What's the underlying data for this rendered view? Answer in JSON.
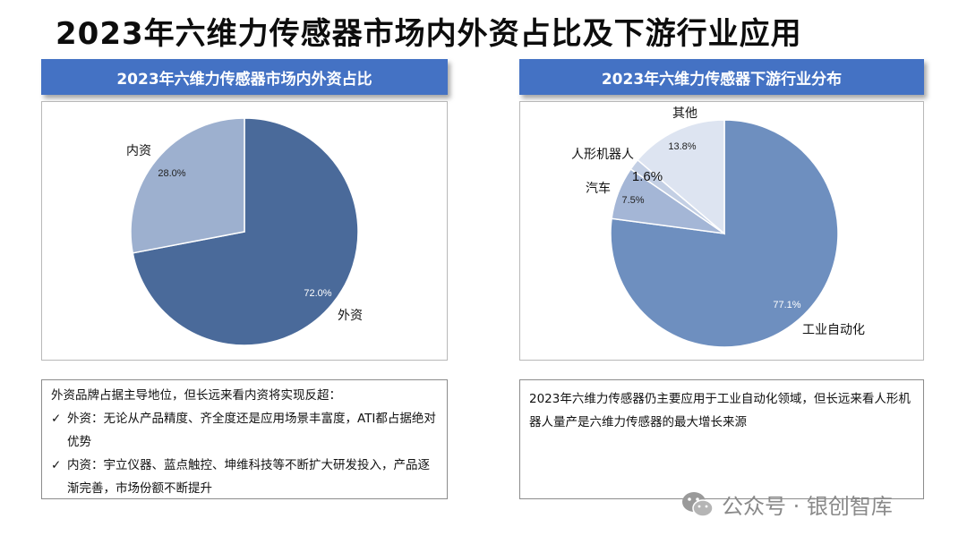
{
  "title": "2023年六维力传感器市场内外资占比及下游行业应用",
  "left_panel": {
    "header": "2023年六维力传感器市场内外资占比",
    "text": {
      "intro": "外资品牌占据主导地位，但长远来看内资将实现反超：",
      "bullets": [
        "外资：无论从产品精度、齐全度还是应用场景丰富度，ATI都占据绝对优势",
        "内资：宇立仪器、蓝点触控、坤维科技等不断扩大研发投入，产品逐渐完善，市场份额不断提升"
      ]
    }
  },
  "right_panel": {
    "header": "2023年六维力传感器下游行业分布",
    "text": "2023年六维力传感器仍主要应用于工业自动化领域，但长远来看人形机器人量产是六维力传感器的最大增长来源"
  },
  "watermark": "公众号 · 银创智库",
  "check_mark": "✓",
  "chart_data": [
    {
      "type": "pie",
      "title": "2023年六维力传感器市场内外资占比",
      "slices": [
        {
          "label": "外资",
          "value": 72.0,
          "value_label": "72.0%",
          "color": "#4a6a9a"
        },
        {
          "label": "内资",
          "value": 28.0,
          "value_label": "28.0%",
          "color": "#9db0cf"
        }
      ]
    },
    {
      "type": "pie",
      "title": "2023年六维力传感器下游行业分布",
      "slices": [
        {
          "label": "工业自动化",
          "value": 77.1,
          "value_label": "77.1%",
          "color": "#6e8fbf"
        },
        {
          "label": "汽车",
          "value": 7.5,
          "value_label": "7.5%",
          "color": "#a4b6d6"
        },
        {
          "label": "人形机器人",
          "value": 1.6,
          "value_label": "1.6%",
          "color": "#c3cfe4"
        },
        {
          "label": "其他",
          "value": 13.8,
          "value_label": "13.8%",
          "color": "#dde4f1"
        }
      ]
    }
  ]
}
